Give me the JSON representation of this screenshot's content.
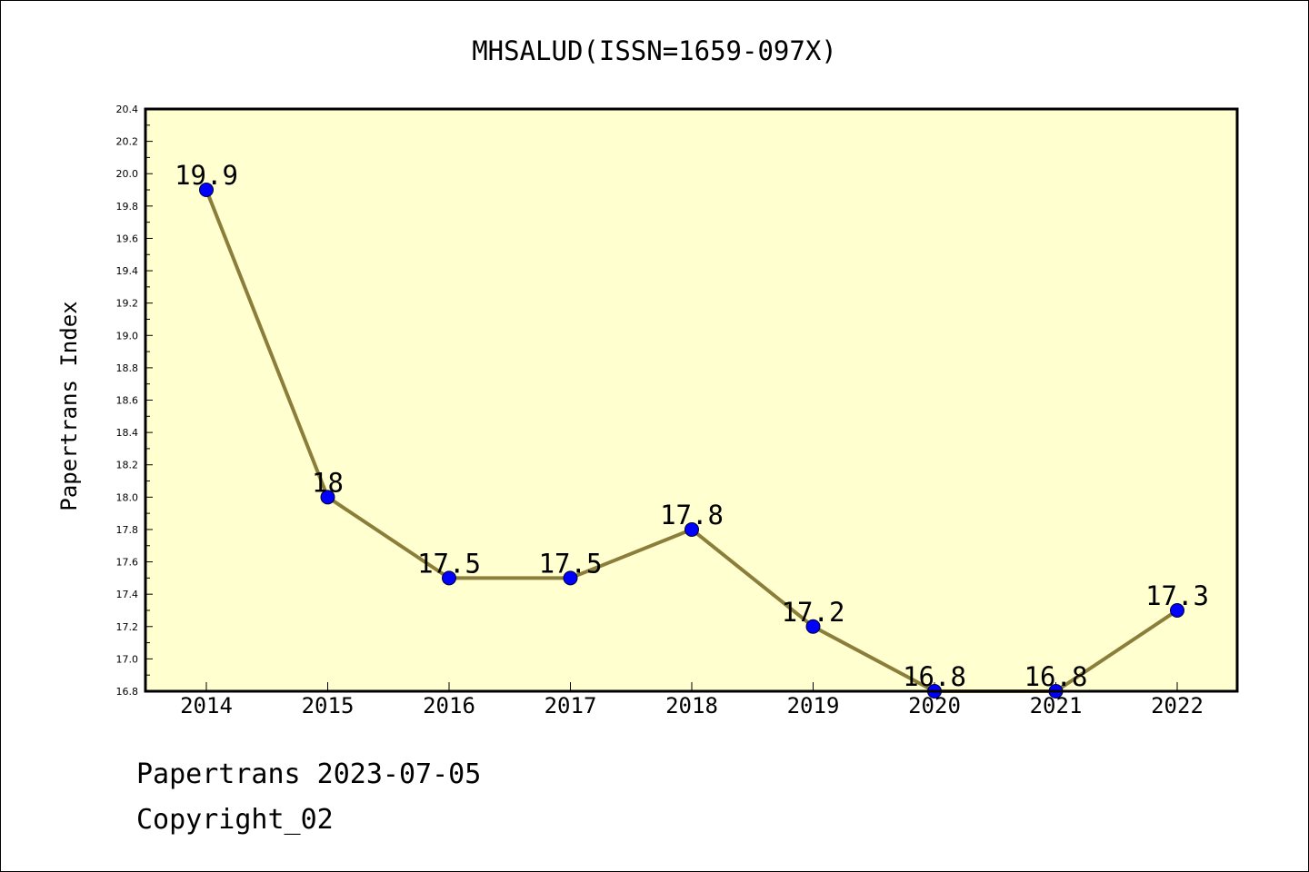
{
  "chart_data": {
    "type": "line",
    "title": "MHSALUD(ISSN=1659-097X)",
    "ylabel": "Papertrans Index",
    "xlabel": "",
    "categories": [
      "2014",
      "2015",
      "2016",
      "2017",
      "2018",
      "2019",
      "2020",
      "2021",
      "2022"
    ],
    "values": [
      19.9,
      18,
      17.5,
      17.5,
      17.8,
      17.2,
      16.8,
      16.8,
      17.3
    ],
    "data_labels": [
      "19.9",
      "18",
      "17.5",
      "17.5",
      "17.8",
      "17.2",
      "16.8",
      "16.8",
      "17.3"
    ],
    "ylim": [
      16.8,
      20.4
    ],
    "yticks": [
      "16.8",
      "17.0",
      "17.2",
      "17.4",
      "17.6",
      "17.8",
      "18.0",
      "18.2",
      "18.4",
      "18.6",
      "18.8",
      "19.0",
      "19.2",
      "19.4",
      "19.6",
      "19.8",
      "20.0",
      "20.2",
      "20.4"
    ],
    "grid": false,
    "legend": "none",
    "colors": {
      "plot_background": "#ffffd0",
      "line": "#8b7d3a",
      "marker": "#0000ff"
    }
  },
  "footer": {
    "date_line": "Papertrans 2023-07-05",
    "copyright_line": "Copyright_02"
  }
}
